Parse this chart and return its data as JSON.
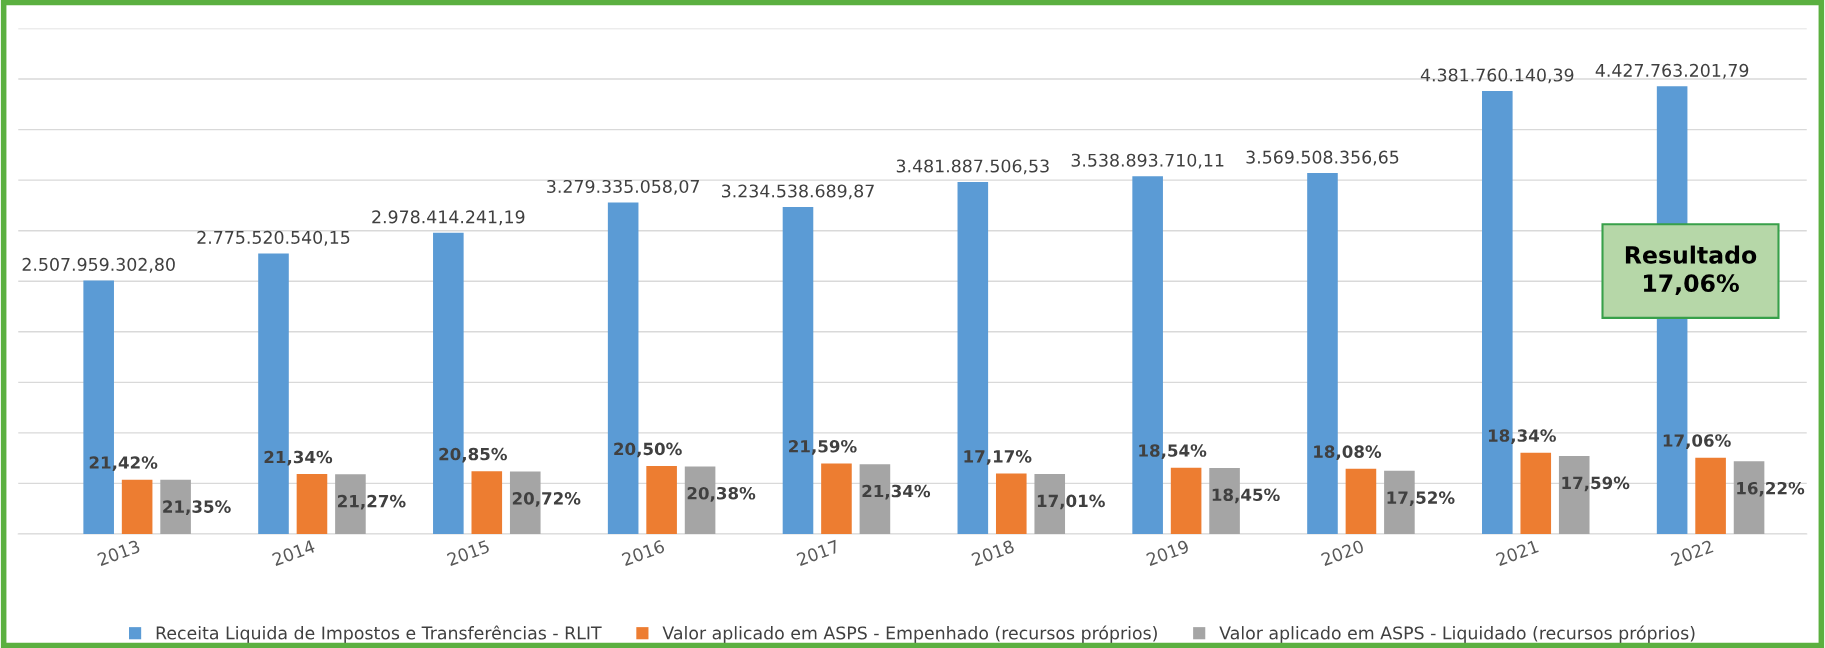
{
  "chart_data": {
    "type": "bar",
    "categories": [
      "2013",
      "2014",
      "2015",
      "2016",
      "2017",
      "2018",
      "2019",
      "2020",
      "2021",
      "2022"
    ],
    "series": [
      {
        "name": "Receita Liquida de Impostos e Transferências - RLIT",
        "color": "#5b9bd5",
        "values": [
          2507959302.8,
          2775520540.15,
          2978414241.19,
          3279335058.07,
          3234538689.87,
          3481887506.53,
          3538893710.11,
          3569508356.65,
          4381760140.39,
          4427763201.79
        ],
        "value_labels": [
          "2.507.959.302,80",
          "2.775.520.540,15",
          "2.978.414.241,19",
          "3.279.335.058,07",
          "3.234.538.689,87",
          "3.481.887.506,53",
          "3.538.893.710,11",
          "3.569.508.356,65",
          "4.381.760.140,39",
          "4.427.763.201,79"
        ]
      },
      {
        "name": "Valor aplicado em ASPS - Empenhado (recursos próprios)",
        "color": "#ed7d31",
        "values": [
          537000000,
          592000000,
          621000000,
          672000000,
          698000000,
          598000000,
          656000000,
          645000000,
          804000000,
          755000000
        ]
      },
      {
        "name": "Valor aplicado em ASPS - Liquidado (recursos próprios)",
        "color": "#a5a5a5",
        "values": [
          536000000,
          590000000,
          617000000,
          668000000,
          690000000,
          592000000,
          653000000,
          625000000,
          771000000,
          718000000
        ]
      }
    ],
    "ylim": [
      0,
      5000000000
    ],
    "yticks": [
      {
        "value": 0,
        "label": null
      },
      {
        "value": 500000000,
        "label": null
      },
      {
        "value": 1000000000,
        "label": null
      },
      {
        "value": 1500000000,
        "label": null
      },
      {
        "value": 2000000000,
        "label": null
      },
      {
        "value": 2500000000,
        "label": null
      },
      {
        "value": 3000000000,
        "label": null
      },
      {
        "value": 3500000000,
        "label": null
      },
      {
        "value": 4000000000,
        "label": null
      },
      {
        "value": 4500000000,
        "label": null
      },
      {
        "value": 5000000000,
        "label": null
      }
    ],
    "tick_labels": "x",
    "grid": "y",
    "legend": "bottom",
    "annotations": [
      "Resultado\n17,06%",
      {
        "text": "21,42%",
        "x": "2013",
        "y": 537000000
      },
      {
        "text": "21,35%",
        "x": "2013",
        "y": 536000000
      },
      {
        "text": "21,34%",
        "x": "2014",
        "y": 592000000
      },
      {
        "text": "21,27%",
        "x": "2014",
        "y": 590000000
      },
      {
        "text": "20,85%",
        "x": "2015",
        "y": 621000000
      },
      {
        "text": "20,72%",
        "x": "2015",
        "y": 617000000
      },
      {
        "text": "20,50%",
        "x": "2016",
        "y": 672000000
      },
      {
        "text": "20,38%",
        "x": "2016",
        "y": 668000000
      },
      {
        "text": "21,59%",
        "x": "2017",
        "y": 698000000
      },
      {
        "text": "21,34%",
        "x": "2017",
        "y": 690000000
      },
      {
        "text": "17,17%",
        "x": "2018",
        "y": 598000000
      },
      {
        "text": "17,01%",
        "x": "2018",
        "y": 592000000
      },
      {
        "text": "18,54%",
        "x": "2019",
        "y": 656000000
      },
      {
        "text": "18,45%",
        "x": "2019",
        "y": 653000000
      },
      {
        "text": "18,08%",
        "x": "2020",
        "y": 645000000
      },
      {
        "text": "17,52%",
        "x": "2020",
        "y": 625000000
      },
      {
        "text": "18,34%",
        "x": "2021",
        "y": 804000000
      },
      {
        "text": "17,59%",
        "x": "2021",
        "y": 771000000
      },
      {
        "text": "17,06%",
        "x": "2022",
        "y": 755000000
      },
      {
        "text": "16,22%",
        "x": "2022",
        "y": 718000000
      }
    ]
  }
}
